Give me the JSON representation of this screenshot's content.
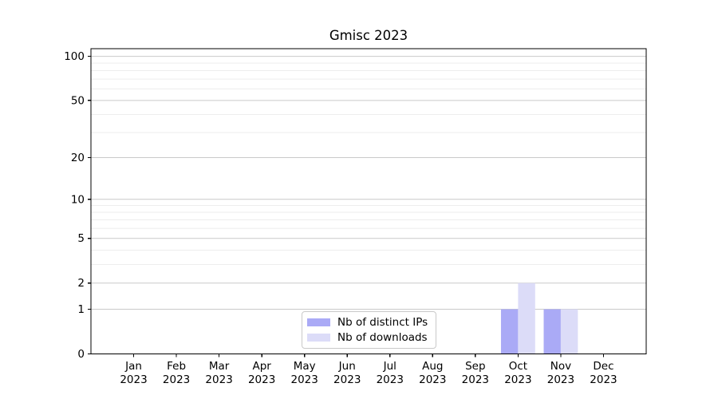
{
  "chart_data": {
    "type": "bar",
    "title": "Gmisc 2023",
    "categories": [
      "Jan 2023",
      "Feb 2023",
      "Mar 2023",
      "Apr 2023",
      "May 2023",
      "Jun 2023",
      "Jul 2023",
      "Aug 2023",
      "Sep 2023",
      "Oct 2023",
      "Nov 2023",
      "Dec 2023"
    ],
    "series": [
      {
        "name": "Nb of distinct IPs",
        "color": "#aaaaf6",
        "values": [
          0,
          0,
          0,
          0,
          0,
          0,
          0,
          0,
          0,
          1,
          1,
          0
        ]
      },
      {
        "name": "Nb of downloads",
        "color": "#dcdcf8",
        "values": [
          0,
          0,
          0,
          0,
          0,
          0,
          0,
          0,
          0,
          2,
          1,
          0
        ]
      }
    ],
    "xlabel": "",
    "ylabel": "",
    "y_scale": "log1p",
    "y_ticks": [
      0,
      1,
      2,
      5,
      10,
      20,
      50,
      100
    ],
    "y_minor_ticks": [
      3,
      4,
      6,
      7,
      8,
      9,
      30,
      40,
      60,
      70,
      80,
      90
    ],
    "ylim": [
      0,
      112.8
    ],
    "grid": "horizontal",
    "legend_position": "lower center, inside axes",
    "colors": {
      "major_grid": "#c9c9c9",
      "minor_grid": "#ededed",
      "spine": "#000000",
      "text": "#000000"
    }
  }
}
